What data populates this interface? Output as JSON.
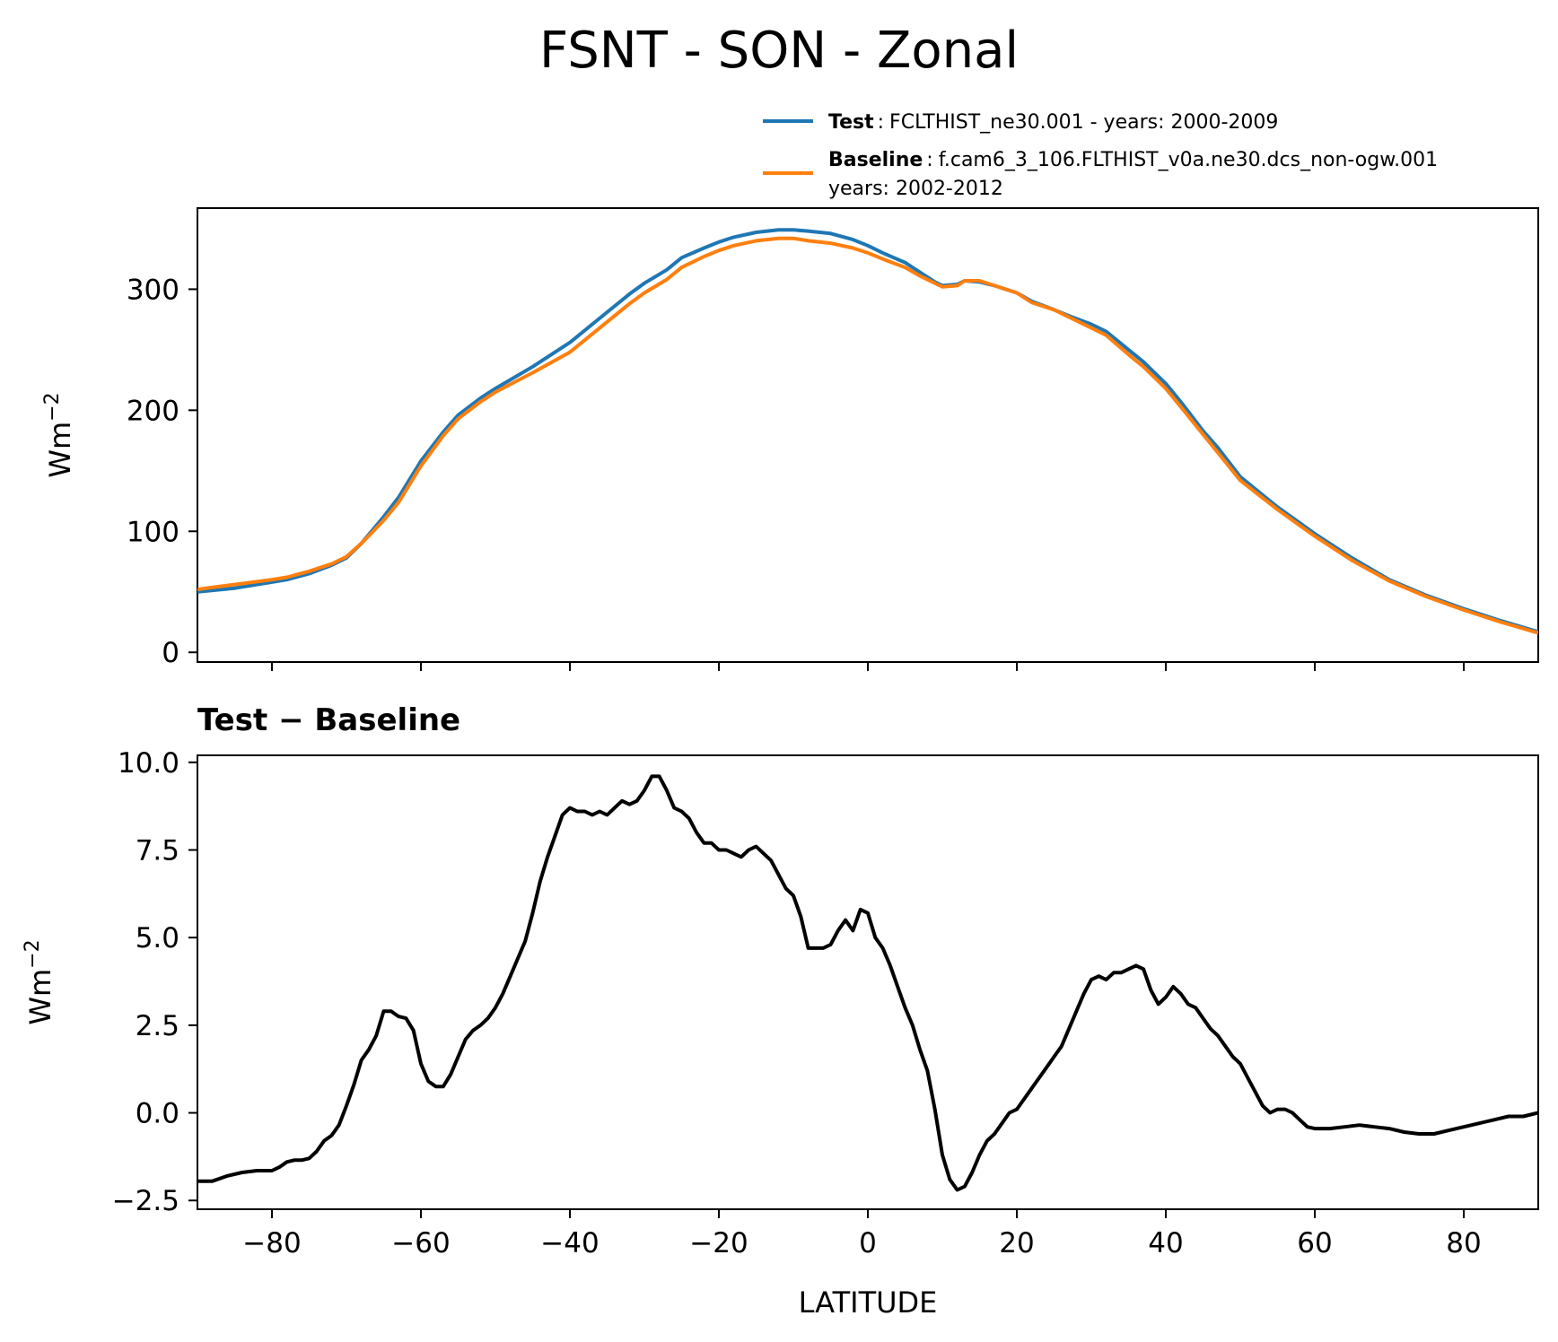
{
  "figure": {
    "title": "FSNT - SON - Zonal"
  },
  "legend": {
    "test": {
      "bold": "Test",
      "sep": ":",
      "text": "FCLTHIST_ne30.001 - years: 2000-2009",
      "color": "#1f77b4"
    },
    "baseline": {
      "bold": "Baseline",
      "sep": ":",
      "text": "f.cam6_3_106.FLTHIST_v0a.ne30.dcs_non-ogw.001",
      "text2": "years: 2002-2012",
      "color": "#ff7f0e"
    }
  },
  "chart_data": [
    {
      "type": "line",
      "title": "",
      "xlabel": "",
      "ylabel": "Wm",
      "ylabel_sup": "−2",
      "xlim": [
        -90,
        90
      ],
      "ylim": [
        -8,
        367
      ],
      "xticks": [
        -80,
        -60,
        -40,
        -20,
        0,
        20,
        40,
        60,
        80
      ],
      "yticks": [
        0,
        100,
        200,
        300
      ],
      "ytick_labels": [
        "0",
        "100",
        "200",
        "300"
      ],
      "series": [
        {
          "name": "Test",
          "color": "#1f77b4",
          "x": [
            -90,
            -85,
            -80,
            -78,
            -75,
            -72,
            -70,
            -68,
            -65,
            -63,
            -60,
            -57,
            -55,
            -52,
            -50,
            -45,
            -40,
            -35,
            -32,
            -30,
            -27,
            -25,
            -22,
            -20,
            -18,
            -15,
            -12,
            -10,
            -8,
            -5,
            -2,
            0,
            2,
            5,
            7,
            9,
            10,
            12,
            13,
            15,
            17,
            20,
            22,
            25,
            27,
            30,
            32,
            35,
            37,
            40,
            42,
            45,
            47,
            50,
            55,
            60,
            65,
            70,
            75,
            80,
            85,
            90
          ],
          "values": [
            50,
            53,
            58,
            60,
            65,
            72,
            78,
            90,
            112,
            128,
            158,
            182,
            196,
            210,
            218,
            236,
            256,
            281,
            296,
            305,
            316,
            326,
            334,
            339,
            343,
            347,
            349,
            349,
            348,
            346,
            341,
            336,
            330,
            322,
            314,
            306,
            303,
            304,
            307,
            306,
            303,
            297,
            290,
            283,
            278,
            271,
            265,
            250,
            240,
            222,
            207,
            183,
            169,
            145,
            120,
            98,
            78,
            60,
            47,
            36,
            26,
            17
          ]
        },
        {
          "name": "Baseline",
          "color": "#ff7f0e",
          "x": [
            -90,
            -85,
            -80,
            -78,
            -75,
            -72,
            -70,
            -68,
            -65,
            -63,
            -60,
            -57,
            -55,
            -52,
            -50,
            -45,
            -40,
            -35,
            -32,
            -30,
            -27,
            -25,
            -22,
            -20,
            -18,
            -15,
            -12,
            -10,
            -8,
            -5,
            -2,
            0,
            2,
            5,
            7,
            9,
            10,
            12,
            13,
            15,
            17,
            20,
            22,
            25,
            27,
            30,
            32,
            35,
            37,
            40,
            42,
            45,
            47,
            50,
            55,
            60,
            65,
            70,
            75,
            80,
            85,
            90
          ],
          "values": [
            52,
            56,
            60,
            62,
            67,
            73,
            79,
            90,
            109,
            124,
            154,
            179,
            193,
            207,
            215,
            231,
            248,
            273,
            288,
            297,
            308,
            318,
            327,
            332,
            336,
            340,
            342,
            342,
            340,
            338,
            334,
            330,
            325,
            318,
            311,
            305,
            302,
            303,
            307,
            307,
            303,
            297,
            289,
            283,
            277,
            268,
            262,
            246,
            236,
            218,
            203,
            180,
            165,
            142,
            118,
            96,
            76,
            59,
            46,
            35,
            25,
            16
          ]
        }
      ]
    },
    {
      "type": "line",
      "title": "Test − Baseline",
      "xlabel": "LATITUDE",
      "ylabel": "Wm",
      "ylabel_sup": "−2",
      "xlim": [
        -90,
        90
      ],
      "ylim": [
        -2.75,
        10.2
      ],
      "xticks": [
        -80,
        -60,
        -40,
        -20,
        0,
        20,
        40,
        60,
        80
      ],
      "xtick_labels": [
        "−80",
        "−60",
        "−40",
        "−20",
        "0",
        "20",
        "40",
        "60",
        "80"
      ],
      "yticks": [
        -2.5,
        0,
        2.5,
        5,
        7.5,
        10
      ],
      "ytick_labels": [
        "−2.5",
        "0.0",
        "2.5",
        "5.0",
        "7.5",
        "10.0"
      ],
      "series": [
        {
          "name": "Test − Baseline",
          "color": "#000000",
          "x": [
            -90,
            -88,
            -86,
            -84,
            -82,
            -80,
            -79,
            -78,
            -77,
            -76,
            -75,
            -74,
            -73,
            -72,
            -71,
            -70,
            -69,
            -68,
            -67,
            -66,
            -65,
            -64,
            -63,
            -62,
            -61,
            -60,
            -59,
            -58,
            -57,
            -56,
            -55,
            -54,
            -53,
            -52,
            -51,
            -50,
            -49,
            -48,
            -47,
            -46,
            -45,
            -44,
            -43,
            -42,
            -41,
            -40,
            -39,
            -38,
            -37,
            -36,
            -35,
            -34,
            -33,
            -32,
            -31,
            -30,
            -29,
            -28,
            -27,
            -26,
            -25,
            -24,
            -23,
            -22,
            -21,
            -20,
            -19,
            -18,
            -17,
            -16,
            -15,
            -14,
            -13,
            -12,
            -11,
            -10,
            -9,
            -8,
            -7,
            -6,
            -5,
            -4,
            -3,
            -2,
            -1,
            0,
            1,
            2,
            3,
            4,
            5,
            6,
            7,
            8,
            9,
            10,
            11,
            12,
            13,
            14,
            15,
            16,
            17,
            18,
            19,
            20,
            21,
            22,
            23,
            24,
            25,
            26,
            27,
            28,
            29,
            30,
            31,
            32,
            33,
            34,
            35,
            36,
            37,
            38,
            39,
            40,
            41,
            42,
            43,
            44,
            45,
            46,
            47,
            48,
            49,
            50,
            51,
            52,
            53,
            54,
            55,
            56,
            57,
            58,
            59,
            60,
            62,
            64,
            66,
            68,
            70,
            72,
            74,
            76,
            78,
            80,
            82,
            84,
            86,
            88,
            90
          ],
          "values": [
            -1.95,
            -1.95,
            -1.8,
            -1.7,
            -1.65,
            -1.65,
            -1.55,
            -1.4,
            -1.35,
            -1.35,
            -1.3,
            -1.1,
            -0.8,
            -0.65,
            -0.35,
            0.2,
            0.8,
            1.5,
            1.8,
            2.2,
            2.9,
            2.9,
            2.75,
            2.7,
            2.35,
            1.4,
            0.9,
            0.75,
            0.75,
            1.1,
            1.6,
            2.1,
            2.35,
            2.5,
            2.7,
            3.0,
            3.4,
            3.9,
            4.4,
            4.9,
            5.7,
            6.6,
            7.3,
            7.9,
            8.5,
            8.7,
            8.6,
            8.6,
            8.5,
            8.6,
            8.5,
            8.7,
            8.9,
            8.8,
            8.9,
            9.2,
            9.6,
            9.6,
            9.2,
            8.7,
            8.6,
            8.4,
            8.0,
            7.7,
            7.7,
            7.5,
            7.5,
            7.4,
            7.3,
            7.5,
            7.6,
            7.4,
            7.2,
            6.8,
            6.4,
            6.2,
            5.6,
            4.7,
            4.7,
            4.7,
            4.8,
            5.2,
            5.5,
            5.2,
            5.8,
            5.7,
            5.0,
            4.7,
            4.2,
            3.6,
            3.0,
            2.5,
            1.8,
            1.2,
            0.1,
            -1.2,
            -1.9,
            -2.2,
            -2.1,
            -1.7,
            -1.2,
            -0.8,
            -0.6,
            -0.3,
            0.0,
            0.1,
            0.4,
            0.7,
            1.0,
            1.3,
            1.6,
            1.9,
            2.4,
            2.9,
            3.4,
            3.8,
            3.9,
            3.8,
            4.0,
            4.0,
            4.1,
            4.2,
            4.1,
            3.5,
            3.1,
            3.3,
            3.6,
            3.4,
            3.1,
            3.0,
            2.7,
            2.4,
            2.2,
            1.9,
            1.6,
            1.4,
            1.0,
            0.6,
            0.2,
            0.0,
            0.1,
            0.1,
            0.0,
            -0.2,
            -0.4,
            -0.45,
            -0.45,
            -0.4,
            -0.35,
            -0.4,
            -0.45,
            -0.55,
            -0.6,
            -0.6,
            -0.5,
            -0.4,
            -0.3,
            -0.2,
            -0.1,
            -0.1,
            0.0
          ]
        }
      ]
    }
  ]
}
